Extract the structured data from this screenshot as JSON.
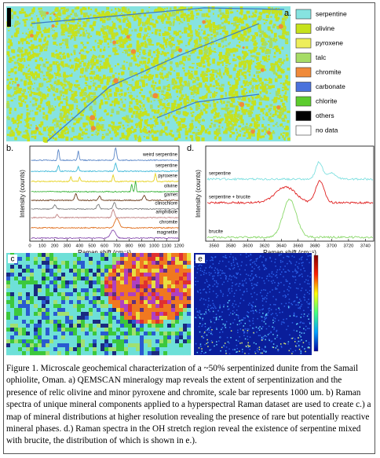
{
  "figure": {
    "panel_a": {
      "label": "a.",
      "legend": [
        {
          "name": "serpentine",
          "color": "#86e3e0"
        },
        {
          "name": "olivine",
          "color": "#c6e21c"
        },
        {
          "name": "pyroxene",
          "color": "#eeee5a"
        },
        {
          "name": "talc",
          "color": "#a6dc66"
        },
        {
          "name": "chromite",
          "color": "#f08a3a"
        },
        {
          "name": "carbonate",
          "color": "#4a72dc"
        },
        {
          "name": "chlorite",
          "color": "#5ccc2e"
        },
        {
          "name": "others",
          "color": "#000000"
        },
        {
          "name": "no data",
          "color": "#ffffff"
        }
      ]
    },
    "panel_b": {
      "label": "b.",
      "x_label": "Raman shift (cm⁻¹)",
      "y_label": "Intensity (counts)",
      "xlim": [
        0,
        1200
      ],
      "xticks": [
        0,
        100,
        200,
        300,
        400,
        500,
        600,
        700,
        800,
        900,
        1000,
        1100,
        1200
      ],
      "spectra": [
        {
          "name": "weird serpentine",
          "color": "#5a86c8"
        },
        {
          "name": "serpentine",
          "color": "#3fb8d8"
        },
        {
          "name": "pyroxene",
          "color": "#e6d21e"
        },
        {
          "name": "olivine",
          "color": "#3cb43c"
        },
        {
          "name": "garnet",
          "color": "#6a3a1a"
        },
        {
          "name": "clinochlore",
          "color": "#7a7a7a"
        },
        {
          "name": "amphibole",
          "color": "#c08080"
        },
        {
          "name": "chromite",
          "color": "#e07020"
        },
        {
          "name": "magnetite",
          "color": "#8a50b0"
        }
      ]
    },
    "panel_c": {
      "label": "c"
    },
    "panel_d": {
      "label": "d.",
      "x_label": "Raman shift (cm⁻¹)",
      "y_label": "Intensity (counts)",
      "xlim": [
        3550,
        3750
      ],
      "xticks": [
        3560,
        3580,
        3600,
        3620,
        3640,
        3660,
        3680,
        3700,
        3720,
        3740
      ],
      "spectra": [
        {
          "name": "serpentine",
          "color": "#7fe0e0"
        },
        {
          "name": "serpentine + brucite",
          "color": "#e02020"
        },
        {
          "name": "brucite",
          "color": "#8ad86a"
        }
      ]
    },
    "panel_e": {
      "label": "e"
    },
    "caption": "Figure 1. Microscale geochemical characterization of a ~50% serpentinized dunite from the Samail ophiolite, Oman. a) QEMSCAN mineralogy map reveals the extent of serpentinization and the presence of relic olivine and minor pyroxene and chromite, scale bar represents 1000 um. b) Raman spectra of unique mineral components applied to a hyperspectral Raman dataset are used to create c.) a map of mineral distributions at higher resolution revealing the presence of rare but potentially reactive mineral phases. d.) Raman spectra in the OH stretch region reveal the existence of serpentine mixed with brucite, the distribution of which is shown in e.)."
  }
}
